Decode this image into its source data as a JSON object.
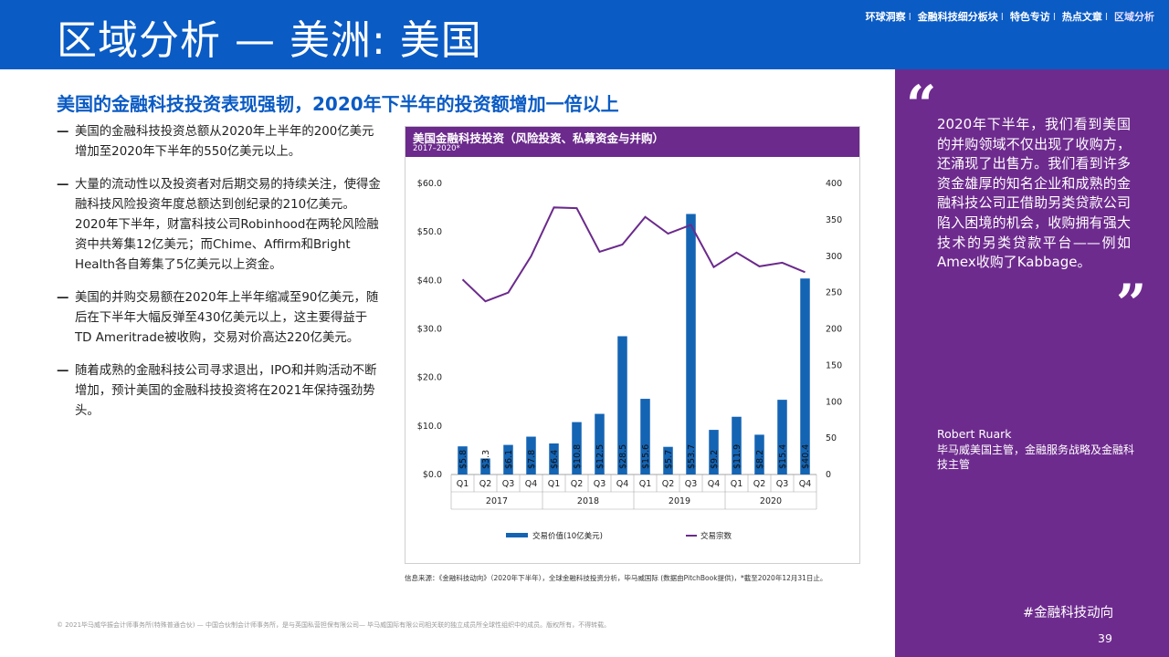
{
  "header": {
    "title": "区域分析 — 美洲: 美国",
    "nav": [
      "环球洞察",
      "金融科技细分板块",
      "特色专访",
      "热点文章",
      "区域分析"
    ],
    "active_nav": "区域分析"
  },
  "subtitle": "美国的金融科技投资表现强韧，2020年下半年的投资额增加一倍以上",
  "bullets": [
    "美国的金融科技投资总额从2020年上半年的200亿美元增加至2020年下半年的550亿美元以上。",
    "大量的流动性以及投资者对后期交易的持续关注，使得金融科技风险投资年度总额达到创纪录的210亿美元。2020年下半年，财富科技公司Robinhood在两轮风险融资中共筹集12亿美元；而Chime、Affirm和Bright Health各自筹集了5亿美元以上资金。",
    "美国的并购交易额在2020年上半年缩减至90亿美元，随后在下半年大幅反弹至430亿美元以上，这主要得益于TD Ameritrade被收购，交易对价高达220亿美元。",
    "随着成熟的金融科技公司寻求退出，IPO和并购活动不断增加，预计美国的金融科技投资将在2021年保持强劲势头。"
  ],
  "chart": {
    "title": "美国金融科技投资（风险投资、私募资金与并购）",
    "subtitle": "2017–2020*"
  },
  "chart_data": {
    "type": "bar",
    "categories": [
      "Q1",
      "Q2",
      "Q3",
      "Q4",
      "Q1",
      "Q2",
      "Q3",
      "Q4",
      "Q1",
      "Q2",
      "Q3",
      "Q4",
      "Q1",
      "Q2",
      "Q3",
      "Q4"
    ],
    "years": [
      "2017",
      "2018",
      "2019",
      "2020"
    ],
    "series": [
      {
        "name": "交易价值(10亿美元)",
        "type": "bar",
        "axis": "left",
        "values": [
          5.8,
          3.3,
          6.1,
          7.8,
          6.4,
          10.8,
          12.5,
          28.5,
          15.6,
          5.7,
          53.7,
          9.2,
          11.9,
          8.2,
          15.4,
          40.4
        ],
        "labels": [
          "$5.8",
          "$3.3",
          "$6.1",
          "$7.8",
          "$6.4",
          "$10.8",
          "$12.5",
          "$28.5",
          "$15.6",
          "$5.7",
          "$53.7",
          "$9.2",
          "$11.9",
          "$8.2",
          "$15.4",
          "$40.4"
        ]
      },
      {
        "name": "交易宗数",
        "type": "line",
        "axis": "right",
        "values": [
          268,
          238,
          250,
          300,
          367,
          366,
          306,
          316,
          354,
          331,
          343,
          285,
          305,
          286,
          291,
          278
        ]
      }
    ],
    "y_left": {
      "ticks": [
        "$0.0",
        "$10.0",
        "$20.0",
        "$30.0",
        "$40.0",
        "$50.0",
        "$60.0"
      ],
      "range": [
        0,
        60
      ]
    },
    "y_right": {
      "ticks": [
        "0",
        "50",
        "100",
        "150",
        "200",
        "250",
        "300",
        "350",
        "400"
      ],
      "range": [
        0,
        400
      ]
    },
    "colors": {
      "bar": "#1464b4",
      "line": "#6b2a8c"
    },
    "legend_position": "bottom"
  },
  "source": "信息来源：《金融科技动向》（2020年下半年），全球金融科技投资分析，毕马威国际 (数据由PitchBook提供)，*截至2020年12月31日止。",
  "footer": "© 2021毕马威华振会计师事务所(特殊普通合伙) — 中国合伙制会计师事务所，是与英国私营担保有限公司— 毕马威国际有限公司相关联的独立成员所全球性组织中的成员。版权所有，不得转载。",
  "quote": {
    "open_mark": "“",
    "close_mark": "”",
    "text": "2020年下半年，我们看到美国的并购领域不仅出现了收购方，还涌现了出售方。我们看到许多资金雄厚的知名企业和成熟的金融科技公司正借助另类贷款公司陷入困境的机会，收购拥有强大技术的另类贷款平台——例如Amex收购了Kabbage。",
    "author": "Robert Ruark",
    "role": "毕马威美国主管，金融服务战略及金融科技主管"
  },
  "hashtag": "#金融科技动向",
  "page_number": "39"
}
